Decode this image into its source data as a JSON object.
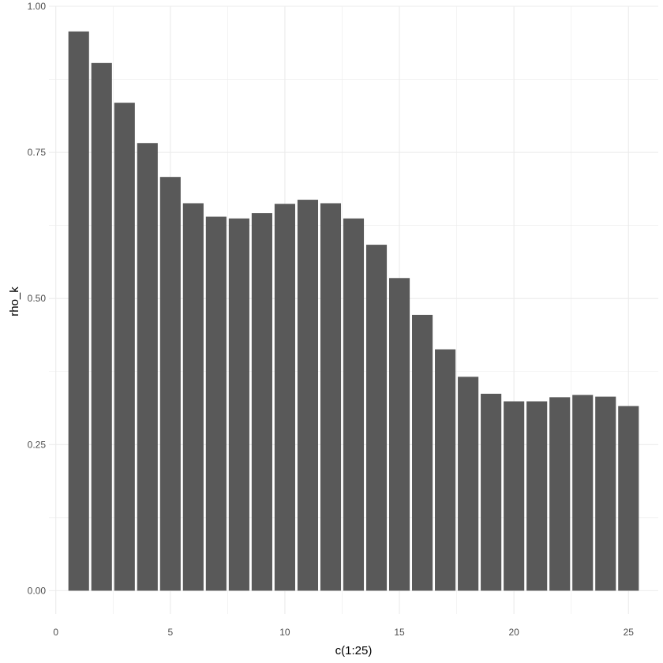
{
  "chart_data": {
    "type": "bar",
    "xlabel": "c(1:25)",
    "ylabel": "rho_k",
    "x": [
      1,
      2,
      3,
      4,
      5,
      6,
      7,
      8,
      9,
      10,
      11,
      12,
      13,
      14,
      15,
      16,
      17,
      18,
      19,
      20,
      21,
      22,
      23,
      24,
      25
    ],
    "values": [
      0.957,
      0.903,
      0.835,
      0.766,
      0.708,
      0.663,
      0.64,
      0.637,
      0.646,
      0.662,
      0.669,
      0.663,
      0.637,
      0.592,
      0.535,
      0.472,
      0.413,
      0.366,
      0.337,
      0.324,
      0.324,
      0.331,
      0.335,
      0.332,
      0.316
    ],
    "xlim": [
      -0.3,
      26.3
    ],
    "ylim": [
      -0.04,
      1.0
    ],
    "x_ticks": [
      "0",
      "5",
      "10",
      "15",
      "20",
      "25"
    ],
    "y_ticks": [
      "0.00",
      "0.25",
      "0.50",
      "0.75",
      "1.00"
    ],
    "grid": true,
    "bar_color": "#595959",
    "grid_color": "#ebebeb"
  }
}
